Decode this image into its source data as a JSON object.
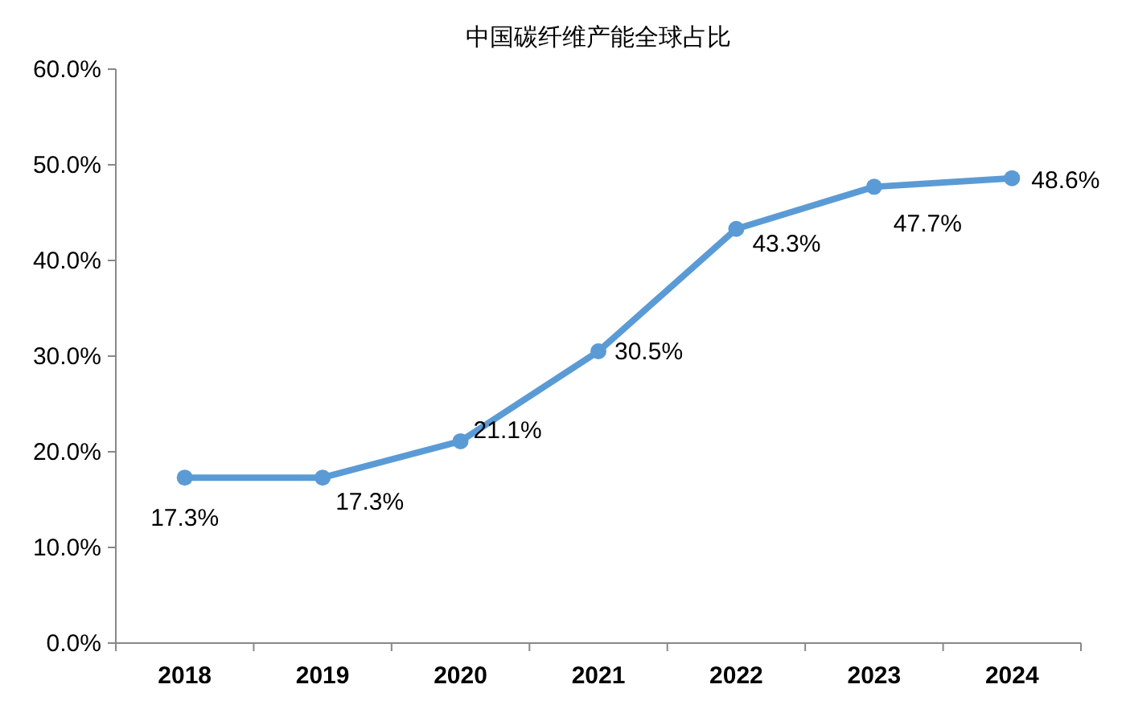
{
  "chart_data": {
    "type": "line",
    "title": "中国碳纤维产能全球占比",
    "categories": [
      "2018",
      "2019",
      "2020",
      "2021",
      "2022",
      "2023",
      "2024"
    ],
    "series": [
      {
        "color": "#5b9bd5",
        "values": [
          17.3,
          17.3,
          21.1,
          30.5,
          43.3,
          47.7,
          48.6
        ],
        "value_labels": [
          "17.3%",
          "17.3%",
          "21.1%",
          "30.5%",
          "43.3%",
          "47.7%",
          "48.6%"
        ]
      }
    ],
    "ylim": [
      0,
      60
    ],
    "yticks": [
      {
        "value": 0,
        "label": "0.0%"
      },
      {
        "value": 10,
        "label": "10.0%"
      },
      {
        "value": 20,
        "label": "20.0%"
      },
      {
        "value": 30,
        "label": "30.0%"
      },
      {
        "value": 40,
        "label": "40.0%"
      },
      {
        "value": 50,
        "label": "50.0%"
      },
      {
        "value": 60,
        "label": "60.0%"
      }
    ],
    "marker": "circle",
    "line_style": "solid"
  }
}
